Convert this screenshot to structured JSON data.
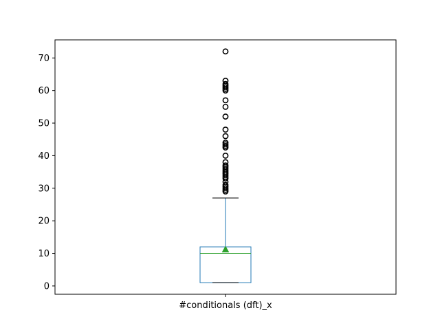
{
  "chart_data": {
    "type": "box",
    "categories": [
      "#conditionals (dft)_x"
    ],
    "boxes": [
      {
        "name": "#conditionals (dft)_x",
        "whisker_low": 1,
        "q1": 1,
        "median": 10,
        "mean": 11.2,
        "q3": 12,
        "whisker_high": 27,
        "outliers": [
          29,
          29.5,
          30,
          30.5,
          31,
          32,
          33,
          33.5,
          34,
          34.5,
          35,
          35.5,
          36,
          36.5,
          37,
          38,
          40,
          42.5,
          43,
          43.5,
          44,
          46,
          48,
          52,
          55,
          57,
          60,
          60.5,
          61,
          61.5,
          62,
          63,
          72
        ]
      }
    ],
    "yticks": [
      0,
      10,
      20,
      30,
      40,
      50,
      60,
      70
    ],
    "ylim": [
      -2.55,
      75.55
    ],
    "colors": {
      "box": "#1f77b4",
      "median": "#2ca02c",
      "mean_marker": "#2ca02c",
      "outlier": "#000000",
      "cap": "#000000"
    }
  }
}
